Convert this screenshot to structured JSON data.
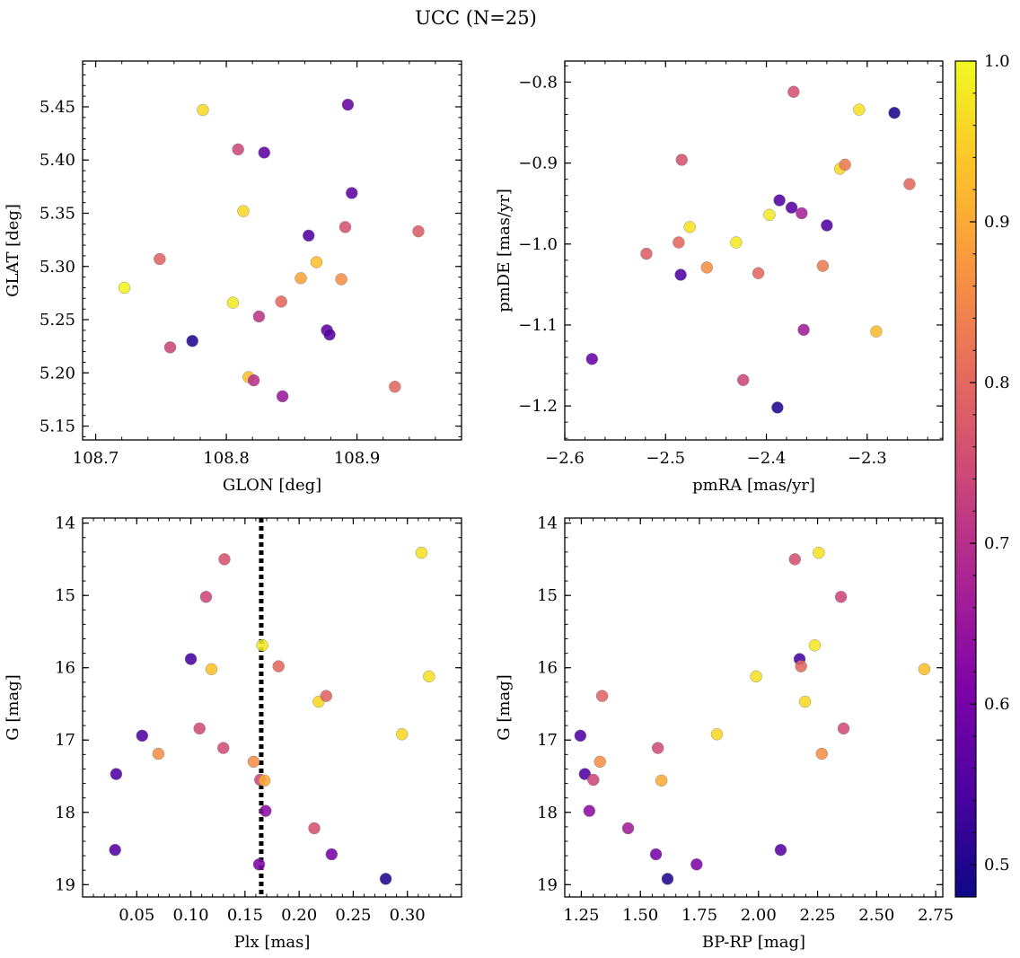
{
  "figure": {
    "title": "UCC (N=25)"
  },
  "colorbar": {
    "cmap": "plasma",
    "range": [
      0.48,
      1.0
    ],
    "ticks": [
      0.5,
      0.6,
      0.7,
      0.8,
      0.9,
      1.0
    ],
    "tick_labels": [
      "0.5",
      "0.6",
      "0.7",
      "0.8",
      "0.9",
      "1.0"
    ]
  },
  "chart_data": [
    {
      "type": "scatter",
      "xlabel": "GLON [deg]",
      "ylabel": "GLAT [deg]",
      "xlim": [
        108.69,
        108.98
      ],
      "ylim": [
        5.137,
        5.493
      ],
      "xticks": [
        108.7,
        108.8,
        108.9
      ],
      "xtick_labels": [
        "108.7",
        "108.8",
        "108.9"
      ],
      "yticks": [
        5.15,
        5.2,
        5.25,
        5.3,
        5.35,
        5.4,
        5.45
      ],
      "ytick_labels": [
        "5.15",
        "5.20",
        "5.25",
        "5.30",
        "5.35",
        "5.40",
        "5.45"
      ],
      "x": [
        108.722,
        108.749,
        108.757,
        108.774,
        108.782,
        108.805,
        108.809,
        108.813,
        108.817,
        108.821,
        108.825,
        108.829,
        108.842,
        108.843,
        108.857,
        108.863,
        108.869,
        108.877,
        108.879,
        108.888,
        108.891,
        108.893,
        108.896,
        108.929,
        108.947
      ],
      "y": [
        5.28,
        5.307,
        5.224,
        5.23,
        5.447,
        5.266,
        5.41,
        5.352,
        5.196,
        5.193,
        5.253,
        5.407,
        5.267,
        5.178,
        5.289,
        5.329,
        5.304,
        5.24,
        5.236,
        5.288,
        5.337,
        5.452,
        5.369,
        5.187,
        5.333
      ],
      "c": [
        0.99,
        0.79,
        0.74,
        0.5,
        0.96,
        0.98,
        0.74,
        0.96,
        0.93,
        0.7,
        0.71,
        0.57,
        0.8,
        0.65,
        0.89,
        0.55,
        0.93,
        0.57,
        0.56,
        0.86,
        0.76,
        0.58,
        0.57,
        0.8,
        0.78
      ]
    },
    {
      "type": "scatter",
      "xlabel": "pmRA [mas/yr]",
      "ylabel": "pmDE [mas/yr]",
      "xlim": [
        -2.6,
        -2.225
      ],
      "ylim": [
        -1.242,
        -0.774
      ],
      "xticks": [
        -2.6,
        -2.5,
        -2.4,
        -2.3
      ],
      "xtick_labels": [
        "−2.6",
        "−2.5",
        "−2.4",
        "−2.3"
      ],
      "yticks": [
        -1.2,
        -1.1,
        -1.0,
        -0.9,
        -0.8
      ],
      "ytick_labels": [
        "−1.2",
        "−1.1",
        "−1.0",
        "−0.9",
        "−0.8"
      ],
      "x": [
        -2.573,
        -2.519,
        -2.487,
        -2.485,
        -2.484,
        -2.476,
        -2.459,
        -2.43,
        -2.423,
        -2.408,
        -2.397,
        -2.389,
        -2.387,
        -2.375,
        -2.373,
        -2.365,
        -2.363,
        -2.344,
        -2.34,
        -2.327,
        -2.322,
        -2.308,
        -2.291,
        -2.273,
        -2.258
      ],
      "y": [
        -1.142,
        -1.012,
        -0.998,
        -1.038,
        -0.896,
        -0.979,
        -1.029,
        -0.998,
        -1.168,
        -1.036,
        -0.964,
        -1.202,
        -0.946,
        -0.955,
        -0.812,
        -0.962,
        -1.106,
        -1.027,
        -0.977,
        -0.907,
        -0.902,
        -0.834,
        -1.108,
        -0.838,
        -0.926
      ],
      "c": [
        0.58,
        0.78,
        0.8,
        0.55,
        0.76,
        0.97,
        0.86,
        0.98,
        0.74,
        0.8,
        0.98,
        0.5,
        0.55,
        0.56,
        0.76,
        0.67,
        0.66,
        0.83,
        0.55,
        0.96,
        0.83,
        0.97,
        0.92,
        0.49,
        0.8
      ]
    },
    {
      "type": "scatter",
      "xlabel": "Plx [mas]",
      "ylabel": "G [mag]",
      "xlim": [
        0.0,
        0.35
      ],
      "ylim": [
        19.17,
        13.93
      ],
      "y_inverted": true,
      "xticks": [
        0.05,
        0.1,
        0.15,
        0.2,
        0.25,
        0.3
      ],
      "xtick_labels": [
        "0.05",
        "0.10",
        "0.15",
        "0.20",
        "0.25",
        "0.30"
      ],
      "yticks": [
        14,
        15,
        16,
        17,
        18,
        19
      ],
      "ytick_labels": [
        "14",
        "15",
        "16",
        "17",
        "18",
        "19"
      ],
      "vline": {
        "x": 0.165,
        "style": "dotted",
        "color": "#000000"
      },
      "x": [
        0.03,
        0.031,
        0.055,
        0.07,
        0.1,
        0.108,
        0.114,
        0.119,
        0.13,
        0.131,
        0.158,
        0.163,
        0.164,
        0.166,
        0.168,
        0.169,
        0.181,
        0.214,
        0.218,
        0.225,
        0.23,
        0.28,
        0.295,
        0.313,
        0.32
      ],
      "y": [
        18.52,
        17.47,
        16.94,
        17.19,
        15.88,
        16.84,
        15.02,
        16.02,
        17.11,
        14.5,
        17.3,
        18.72,
        17.55,
        15.69,
        17.56,
        17.98,
        15.98,
        18.22,
        16.47,
        16.39,
        18.58,
        18.92,
        16.92,
        14.41,
        16.12
      ],
      "c": [
        0.56,
        0.55,
        0.55,
        0.86,
        0.54,
        0.75,
        0.74,
        0.93,
        0.75,
        0.76,
        0.86,
        0.61,
        0.74,
        0.98,
        0.9,
        0.63,
        0.8,
        0.76,
        0.96,
        0.79,
        0.6,
        0.5,
        0.96,
        0.97,
        0.97
      ]
    },
    {
      "type": "scatter",
      "xlabel": "BP-RP [mag]",
      "ylabel": "G [mag]",
      "xlim": [
        1.18,
        2.78
      ],
      "ylim": [
        19.17,
        13.93
      ],
      "y_inverted": true,
      "xticks": [
        1.25,
        1.5,
        1.75,
        2.0,
        2.25,
        2.5,
        2.75
      ],
      "xtick_labels": [
        "1.25",
        "1.50",
        "1.75",
        "2.00",
        "2.25",
        "2.50",
        "2.75"
      ],
      "yticks": [
        14,
        15,
        16,
        17,
        18,
        19
      ],
      "ytick_labels": [
        "14",
        "15",
        "16",
        "17",
        "18",
        "19"
      ],
      "x": [
        1.246,
        1.265,
        1.284,
        1.301,
        1.329,
        1.338,
        1.448,
        1.566,
        1.574,
        1.589,
        1.615,
        1.738,
        1.824,
        1.99,
        2.094,
        2.154,
        2.174,
        2.18,
        2.197,
        2.238,
        2.255,
        2.268,
        2.349,
        2.36,
        2.702
      ],
      "y": [
        16.94,
        17.47,
        17.98,
        17.55,
        17.3,
        16.39,
        18.22,
        18.58,
        17.11,
        17.56,
        18.92,
        18.72,
        16.92,
        16.12,
        18.52,
        14.5,
        15.88,
        15.98,
        16.47,
        15.69,
        14.41,
        17.19,
        15.02,
        16.84,
        16.02
      ],
      "c": [
        0.55,
        0.55,
        0.63,
        0.74,
        0.86,
        0.79,
        0.66,
        0.6,
        0.75,
        0.9,
        0.5,
        0.61,
        0.96,
        0.97,
        0.56,
        0.76,
        0.54,
        0.8,
        0.96,
        0.98,
        0.97,
        0.86,
        0.74,
        0.75,
        0.93
      ]
    }
  ]
}
